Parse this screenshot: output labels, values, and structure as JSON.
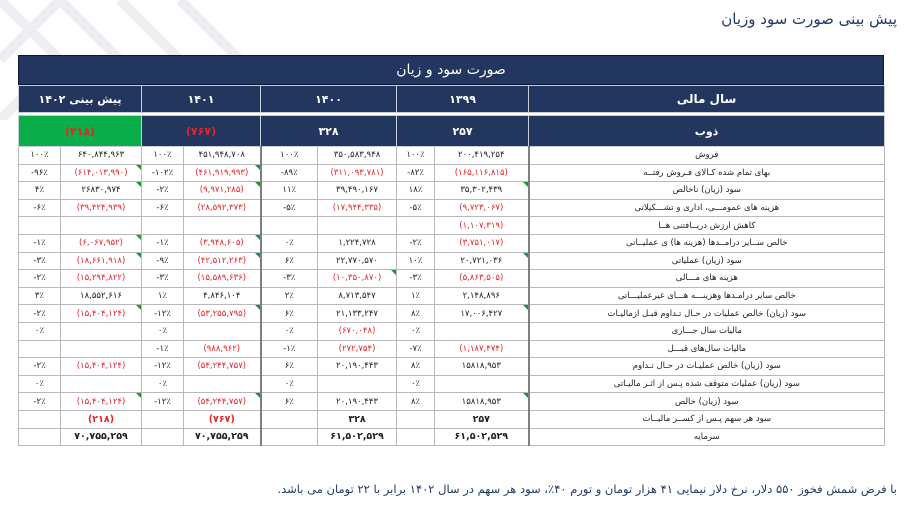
{
  "page": {
    "title": "پیش بینی صورت سود وزیان",
    "footnote": "با فرض شمش فخوز ۵۵۰ دلار، نرخ دلار نیمایی ۴۱ هزار تومان و تورم ۴۰٪، سود هر سهم در سال ۱۴۰۲ برابر با ۲۲ تومان می باشد."
  },
  "table": {
    "banner": "صورت سود و زیان",
    "header": {
      "label": "سال مالی",
      "years": [
        "۱۳۹۹",
        "۱۴۰۰",
        "۱۴۰۱",
        "پیش بینی ۱۴۰۲"
      ]
    },
    "eps_row": {
      "label": "ذوب",
      "values": [
        "۲۵۷",
        "۳۲۸",
        "(۷۶۷)",
        "(۲۱۸)"
      ],
      "negative": [
        false,
        false,
        true,
        true
      ]
    },
    "colors": {
      "header_bg": "#22365f",
      "forecast_green": "#0aad4a",
      "negative_red": "#e8232a"
    },
    "rows": [
      {
        "label": "فروش",
        "y1399": "۲۰۰,۴۱۹,۲۵۴",
        "p1399": "۱۰۰٪",
        "y1400": "۳۵۰,۵۸۳,۹۴۸",
        "p1400": "۱۰۰٪",
        "y1401": "۴۵۱,۹۴۸,۷۰۸",
        "p1401": "۱۰۰٪",
        "y1402": "۶۴۰,۸۴۴,۹۶۳",
        "p1402": "۱۰۰٪",
        "neg": [
          false,
          false,
          false,
          false
        ]
      },
      {
        "label": "بهای تمام شده کـالای فـروش رفتــه",
        "y1399": "(۱۶۵,۱۱۶,۸۱۵)",
        "p1399": "-۸۲٪",
        "y1400": "(۳۱۱,۰۹۳,۷۸۱)",
        "p1400": "-۸۹٪",
        "y1401": "(۴۶۱,۹۱۹,۹۹۳)",
        "p1401": "-۱۰۲٪",
        "y1402": "(۶۱۴,۰۱۳,۹۹۰)",
        "p1402": "-۹۶٪",
        "neg": [
          true,
          true,
          true,
          true
        ]
      },
      {
        "label": "سود (زیان) ناخالص",
        "y1399": "۳۵,۳۰۲,۴۳۹",
        "p1399": "۱۸٪",
        "y1400": "۳۹,۴۹۰,۱۶۷",
        "p1400": "۱۱٪",
        "y1401": "(۹,۹۷۱,۲۸۵)",
        "p1401": "-۲٪",
        "y1402": "۲۶۸۳۰,۹۷۴",
        "p1402": "۴٪",
        "neg": [
          false,
          false,
          true,
          false
        ]
      },
      {
        "label": "هزینه های عمومـــی، اداری و تشـــکیلاتی",
        "y1399": "(۹,۷۲۳,۰۶۷)",
        "p1399": "-۵٪",
        "y1400": "(۱۷,۹۴۴,۳۳۵)",
        "p1400": "-۵٪",
        "y1401": "(۲۸,۵۹۲,۳۷۳)",
        "p1401": "-۶٪",
        "y1402": "(۳۹,۴۲۴,۹۳۹)",
        "p1402": "-۶٪",
        "neg": [
          true,
          true,
          true,
          true
        ]
      },
      {
        "label": "کاهش ارزش دریــافتنی هــا",
        "y1399": "(۱,۱۰۷,۳۱۹)",
        "p1399": "",
        "y1400": "",
        "p1400": "",
        "y1401": "",
        "p1401": "",
        "y1402": "",
        "p1402": "",
        "neg": [
          true,
          false,
          false,
          false
        ]
      },
      {
        "label": "خالص ســایر درامــدها (هزینه ها) ی عملیــاتی",
        "y1399": "(۳,۷۵۱,۰۱۷)",
        "p1399": "-۲٪",
        "y1400": "۱,۲۲۴,۷۲۸",
        "p1400": "۰٪",
        "y1401": "(۳,۹۴۸,۶۰۵)",
        "p1401": "-۱٪",
        "y1402": "(۶,۰۶۷,۹۵۲)",
        "p1402": "-۱٪",
        "neg": [
          true,
          false,
          true,
          true
        ]
      },
      {
        "label": "سود (زیان) عملیاتی",
        "y1399": "۲۰,۷۲۱,۰۳۶",
        "p1399": "۱۰٪",
        "y1400": "۲۲,۷۷۰,۵۷۰",
        "p1400": "۶٪",
        "y1401": "(۴۲,۵۱۲,۲۶۳)",
        "p1401": "-۹٪",
        "y1402": "(۱۸,۶۶۱,۹۱۸)",
        "p1402": "-۳٪",
        "neg": [
          false,
          false,
          true,
          true
        ]
      },
      {
        "label": "هزینه های مـــالی",
        "y1399": "(۵,۸۶۳,۵۰۵)",
        "p1399": "-۳٪",
        "y1400": "(۱۰,۳۵۰,۸۷۰)",
        "p1400": "-۳٪",
        "y1401": "(۱۵,۵۸۹,۶۳۶)",
        "p1401": "-۳٪",
        "y1402": "(۱۵,۲۹۴,۸۲۲)",
        "p1402": "-۲٪",
        "neg": [
          true,
          true,
          true,
          true
        ]
      },
      {
        "label": "خالص سایر درامـدها وهزینـــه هـــای غیرعملیـــاتی",
        "y1399": "۲,۱۴۸,۸۹۶",
        "p1399": "۱٪",
        "y1400": "۸,۷۱۳,۵۴۷",
        "p1400": "۲٪",
        "y1401": "۴,۸۴۶,۱۰۴",
        "p1401": "۱٪",
        "y1402": "۱۸,۵۵۲,۶۱۶",
        "p1402": "۳٪",
        "neg": [
          false,
          false,
          false,
          false
        ]
      },
      {
        "label": "سود (زیان) خالص عملیات در حـال تـداوم قبـل ازمالیـات",
        "y1399": "۱۷,۰۰۶,۴۲۷",
        "p1399": "۸٪",
        "y1400": "۲۱,۱۳۳,۲۴۷",
        "p1400": "۶٪",
        "y1401": "(۵۳,۲۵۵,۷۹۵)",
        "p1401": "-۱۲٪",
        "y1402": "(۱۵,۴۰۴,۱۲۴)",
        "p1402": "-۲٪",
        "neg": [
          false,
          false,
          true,
          true
        ]
      },
      {
        "label": "مالیات سال جـــاری",
        "y1399": "",
        "p1399": "۰٪",
        "y1400": "(۶۷۰,۰۴۸)",
        "p1400": "۰٪",
        "y1401": "",
        "p1401": "۰٪",
        "y1402": "",
        "p1402": "۰٪",
        "neg": [
          false,
          true,
          false,
          false
        ]
      },
      {
        "label": "مالیات سال‌های قبـــل",
        "y1399": "(۱,۱۸۷,۴۷۴)",
        "p1399": "-۷٪",
        "y1400": "(۲۷۲,۷۵۴)",
        "p1400": "-۱٪",
        "y1401": "(۹۸۸,۹۶۲)",
        "p1401": "-۱٪",
        "y1402": "",
        "p1402": "",
        "neg": [
          true,
          true,
          true,
          false
        ]
      },
      {
        "label": "سود (زیان) خالص عملیـات در حـال تـداوم",
        "y1399": "۱۵۸۱۸,۹۵۳",
        "p1399": "۸٪",
        "y1400": "۲۰,۱۹۰,۴۴۳",
        "p1400": "۶٪",
        "y1401": "(۵۴,۲۴۴,۷۵۷)",
        "p1401": "-۱۲٪",
        "y1402": "(۱۵,۴۰۴,۱۲۴)",
        "p1402": "-۲٪",
        "neg": [
          false,
          false,
          true,
          true
        ]
      },
      {
        "label": "سود (زیان) عملیات متوقف شده پـس از اثـر مالیـاتی",
        "y1399": "",
        "p1399": "۰٪",
        "y1400": "",
        "p1400": "۰٪",
        "y1401": "",
        "p1401": "۰٪",
        "y1402": "",
        "p1402": "۰٪",
        "neg": [
          false,
          false,
          false,
          false
        ]
      },
      {
        "label": "سود (زیان) خالص",
        "y1399": "۱۵۸۱۸,۹۵۳",
        "p1399": "۸٪",
        "y1400": "۲۰,۱۹۰,۴۴۳",
        "p1400": "۶٪",
        "y1401": "(۵۴,۲۴۴,۷۵۷)",
        "p1401": "-۱۲٪",
        "y1402": "(۱۵,۴۰۴,۱۲۴)",
        "p1402": "-۲٪",
        "neg": [
          false,
          false,
          true,
          true
        ]
      },
      {
        "label": "سود هر سهم پـس از کســر مالیــات",
        "y1399": "۲۵۷",
        "p1399": "",
        "y1400": "۳۲۸",
        "p1400": "",
        "y1401": "(۷۶۷)",
        "p1401": "",
        "y1402": "(۲۱۸)",
        "p1402": "",
        "neg": [
          false,
          false,
          true,
          true
        ],
        "bold": true
      },
      {
        "label": "سرمایه",
        "y1399": "۶۱,۵۰۲,۵۲۹",
        "p1399": "",
        "y1400": "۶۱,۵۰۲,۵۲۹",
        "p1400": "",
        "y1401": "۷۰,۷۵۵,۲۵۹",
        "p1401": "",
        "y1402": "۷۰,۷۵۵,۲۵۹",
        "p1402": "",
        "neg": [
          false,
          false,
          false,
          false
        ],
        "bold": true
      }
    ]
  }
}
